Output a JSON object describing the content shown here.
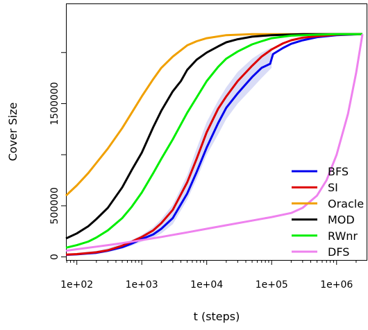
{
  "chart_data": {
    "type": "line",
    "xlabel": "t (steps)",
    "ylabel": "Cover Size",
    "x_scale": "log",
    "xlim": [
      68,
      2900000
    ],
    "ylim": [
      -30000,
      2480000
    ],
    "x_ticks": [
      {
        "value": 100,
        "label": "1e+02"
      },
      {
        "value": 1000,
        "label": "1e+03"
      },
      {
        "value": 10000,
        "label": "1e+04"
      },
      {
        "value": 100000,
        "label": "1e+05"
      },
      {
        "value": 1000000,
        "label": "1e+06"
      }
    ],
    "y_ticks": [
      {
        "value": 0,
        "label": "0"
      },
      {
        "value": 500000,
        "label": "500000"
      },
      {
        "value": 1000000,
        "label": ""
      },
      {
        "value": 1500000,
        "label": "1500000"
      },
      {
        "value": 2000000,
        "label": ""
      }
    ],
    "grid": false,
    "legend_position": "bottom-right",
    "band": {
      "name": "BFS range",
      "color": "#d9dcf7",
      "x": [
        100,
        200,
        300,
        500,
        700,
        1000,
        1500,
        2000,
        3000,
        5000,
        7000,
        10000,
        15000,
        20000,
        30000,
        50000,
        70000,
        100000
      ],
      "lower": [
        25000,
        30000,
        45000,
        80000,
        110000,
        150000,
        190000,
        230000,
        320000,
        560000,
        760000,
        1000000,
        1200000,
        1350000,
        1500000,
        1650000,
        1750000,
        1850000
      ],
      "upper": [
        40000,
        60000,
        85000,
        130000,
        165000,
        215000,
        290000,
        370000,
        510000,
        800000,
        1060000,
        1320000,
        1530000,
        1660000,
        1810000,
        1940000,
        2000000,
        2050000
      ]
    },
    "series": [
      {
        "name": "BFS",
        "color": "#0000ee",
        "x": [
          68,
          100,
          200,
          300,
          500,
          700,
          1000,
          1500,
          2000,
          3000,
          5000,
          7000,
          10000,
          15000,
          20000,
          30000,
          50000,
          70000,
          95000,
          105000,
          150000,
          200000,
          300000,
          500000,
          1000000,
          2500000
        ],
        "y": [
          20000,
          25000,
          40000,
          60000,
          95000,
          130000,
          175000,
          220000,
          275000,
          380000,
          620000,
          830000,
          1070000,
          1310000,
          1460000,
          1600000,
          1760000,
          1850000,
          1890000,
          1985000,
          2045000,
          2085000,
          2120000,
          2150000,
          2170000,
          2180000
        ]
      },
      {
        "name": "SI",
        "color": "#dd0000",
        "x": [
          68,
          100,
          200,
          300,
          500,
          700,
          1000,
          1500,
          2000,
          3000,
          5000,
          7000,
          10000,
          15000,
          20000,
          30000,
          50000,
          70000,
          100000,
          150000,
          200000,
          300000,
          500000,
          1000000,
          2500000
        ],
        "y": [
          22000,
          28000,
          45000,
          65000,
          110000,
          150000,
          195000,
          260000,
          330000,
          460000,
          730000,
          960000,
          1220000,
          1450000,
          1570000,
          1720000,
          1870000,
          1960000,
          2030000,
          2090000,
          2120000,
          2145000,
          2160000,
          2175000,
          2180000
        ]
      },
      {
        "name": "Oracle",
        "color": "#f0a000",
        "x": [
          68,
          100,
          150,
          200,
          300,
          500,
          700,
          1000,
          1500,
          2000,
          3000,
          5000,
          7000,
          10000,
          20000,
          50000,
          100000,
          300000,
          1000000,
          2500000
        ],
        "y": [
          600000,
          700000,
          820000,
          920000,
          1060000,
          1260000,
          1410000,
          1570000,
          1740000,
          1850000,
          1960000,
          2070000,
          2110000,
          2140000,
          2170000,
          2180000,
          2180000,
          2180000,
          2180000,
          2180000
        ]
      },
      {
        "name": "MOD",
        "color": "#000000",
        "x": [
          68,
          100,
          150,
          200,
          300,
          500,
          700,
          1000,
          1500,
          2000,
          3000,
          4000,
          5000,
          7000,
          10000,
          15000,
          20000,
          30000,
          50000,
          100000,
          300000,
          1000000,
          2500000
        ],
        "y": [
          180000,
          230000,
          300000,
          370000,
          480000,
          680000,
          850000,
          1020000,
          1270000,
          1430000,
          1620000,
          1720000,
          1830000,
          1930000,
          2000000,
          2060000,
          2100000,
          2130000,
          2155000,
          2170000,
          2180000,
          2180000,
          2180000
        ]
      },
      {
        "name": "RWnr",
        "color": "#00ee00",
        "x": [
          68,
          100,
          150,
          200,
          300,
          500,
          700,
          1000,
          1500,
          2000,
          3000,
          5000,
          7000,
          10000,
          15000,
          20000,
          30000,
          50000,
          70000,
          100000,
          200000,
          500000,
          1000000,
          2500000
        ],
        "y": [
          90000,
          115000,
          150000,
          190000,
          260000,
          380000,
          490000,
          630000,
          820000,
          960000,
          1150000,
          1410000,
          1560000,
          1720000,
          1860000,
          1940000,
          2010000,
          2080000,
          2110000,
          2140000,
          2165000,
          2175000,
          2180000,
          2180000
        ]
      },
      {
        "name": "DFS",
        "color": "#ee82ee",
        "x": [
          68,
          100,
          200,
          300,
          500,
          1000,
          2000,
          5000,
          10000,
          20000,
          50000,
          100000,
          200000,
          300000,
          500000,
          700000,
          1000000,
          1500000,
          2000000,
          2500000
        ],
        "y": [
          60000,
          75000,
          100000,
          115000,
          135000,
          165000,
          195000,
          240000,
          275000,
          310000,
          355000,
          390000,
          430000,
          480000,
          600000,
          750000,
          1000000,
          1400000,
          1800000,
          2180000
        ]
      }
    ]
  }
}
